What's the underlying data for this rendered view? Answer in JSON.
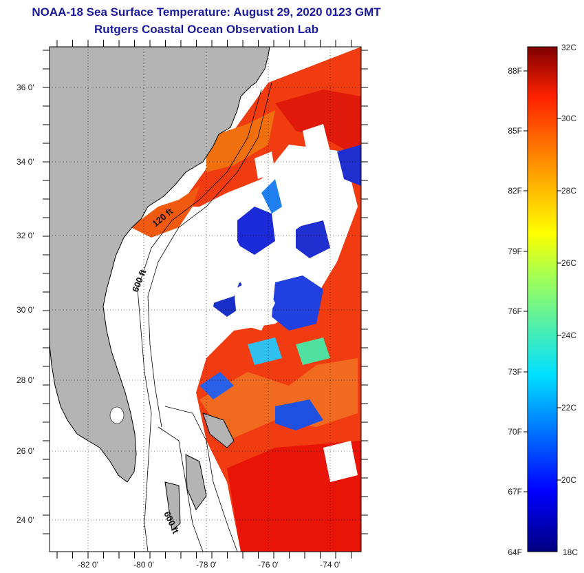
{
  "title": "NOAA-18 Sea Surface Temperature:  August 29, 2020 0123 GMT",
  "subtitle": "Rutgers Coastal Ocean Observation Lab",
  "map": {
    "lon_ticks": [
      "-82 0'",
      "-80 0'",
      "-78 0'",
      "-76 0'",
      "-74 0'"
    ],
    "lat_ticks": [
      "36 0'",
      "34 0'",
      "32 0'",
      "30 0'",
      "28 0'",
      "26 0'",
      "24 0'"
    ],
    "isobath_labels": [
      "120 ft",
      "600 ft",
      "600 ft"
    ],
    "colors": {
      "land": "#b4b4b4",
      "cloud": "#ffffff",
      "coast": "#000000"
    }
  },
  "colorbar": {
    "celsius_ticks": [
      "32C",
      "30C",
      "28C",
      "26C",
      "24C",
      "22C",
      "20C",
      "18C"
    ],
    "fahrenheit_ticks": [
      "88F",
      "85F",
      "82F",
      "79F",
      "76F",
      "73F",
      "70F",
      "67F",
      "64F"
    ]
  }
}
